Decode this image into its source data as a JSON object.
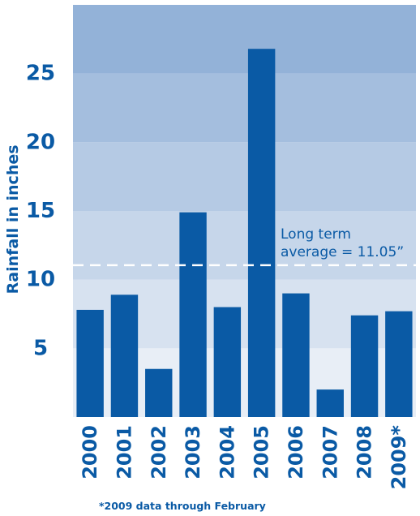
{
  "chart_data": {
    "type": "bar",
    "categories": [
      "2000",
      "2001",
      "2002",
      "2003",
      "2004",
      "2005",
      "2006",
      "2007",
      "2008",
      "2009*"
    ],
    "values": [
      7.8,
      8.9,
      3.5,
      14.9,
      8.0,
      26.8,
      9.0,
      2.0,
      7.4,
      7.7
    ],
    "title": "",
    "xlabel": "",
    "ylabel": "Rainfall in inches",
    "ylim": [
      0,
      30
    ],
    "yticks": [
      5,
      10,
      15,
      20,
      25
    ],
    "average": {
      "value": 11.05,
      "label_line1": "Long term",
      "label_line2": "average = 11.05”"
    },
    "footnote": "*2009 data through February",
    "grid": false,
    "bands": true,
    "colors": {
      "bar": "#0a5aa5",
      "text": "#0a5aa5",
      "band_light": "#e8eef6",
      "band_dark": "#93b2d8",
      "average_line": "#ffffff"
    }
  }
}
